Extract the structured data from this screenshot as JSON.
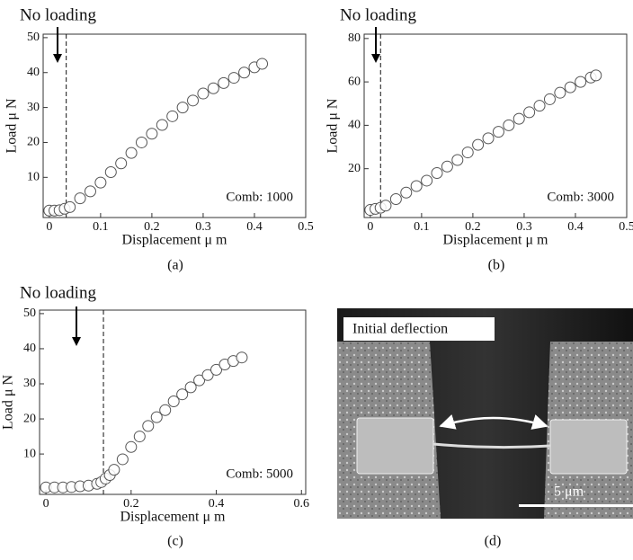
{
  "chart_data": [
    {
      "type": "scatter",
      "annotation": "No loading",
      "note": "Comb: 1000",
      "caption": "(a)",
      "x_label": "Displacement  μ m",
      "y_label": "Load  μ N",
      "xlim": [
        -0.012,
        0.5
      ],
      "ylim": [
        -1.5,
        51
      ],
      "xticks": [
        0,
        0.1,
        0.2,
        0.3,
        0.4,
        0.5
      ],
      "yticks": [
        10,
        20,
        30,
        40,
        50
      ],
      "dashed_x": 0.033,
      "marker_color": "#555555",
      "x": [
        0,
        0.01,
        0.02,
        0.03,
        0.04,
        0.06,
        0.08,
        0.1,
        0.12,
        0.14,
        0.16,
        0.18,
        0.2,
        0.22,
        0.24,
        0.26,
        0.28,
        0.3,
        0.32,
        0.34,
        0.36,
        0.38,
        0.4,
        0.415
      ],
      "values": [
        0.5,
        0.5,
        0.6,
        1,
        1.5,
        4,
        6,
        8.5,
        11.5,
        14,
        17,
        20,
        22.5,
        25,
        27.5,
        30,
        32,
        34,
        35.5,
        37,
        38.5,
        40,
        41.5,
        42.5
      ]
    },
    {
      "type": "scatter",
      "annotation": "No loading",
      "note": "Comb: 3000",
      "caption": "(b)",
      "x_label": "Displacement  μ m",
      "y_label": "Load  μ N",
      "xlim": [
        -0.012,
        0.5
      ],
      "ylim": [
        -2.5,
        82
      ],
      "xticks": [
        0,
        0.1,
        0.2,
        0.3,
        0.4,
        0.5
      ],
      "yticks": [
        20,
        40,
        60,
        80
      ],
      "dashed_x": 0.02,
      "marker_color": "#555555",
      "x": [
        0,
        0.01,
        0.02,
        0.03,
        0.05,
        0.07,
        0.09,
        0.11,
        0.13,
        0.15,
        0.17,
        0.19,
        0.21,
        0.23,
        0.25,
        0.27,
        0.29,
        0.31,
        0.33,
        0.35,
        0.37,
        0.39,
        0.41,
        0.43,
        0.44
      ],
      "values": [
        1,
        1.5,
        2,
        3,
        6,
        9,
        12,
        14.5,
        18,
        21,
        24,
        27.5,
        31,
        34,
        37,
        40,
        43,
        46,
        49,
        52,
        55,
        57.5,
        60,
        62,
        63
      ]
    },
    {
      "type": "scatter",
      "annotation": "No loading",
      "note": "Comb: 5000",
      "caption": "(c)",
      "x_label": "Displacement  μ m",
      "y_label": "Load  μ N",
      "xlim": [
        -0.015,
        0.61
      ],
      "ylim": [
        -1.5,
        51
      ],
      "xticks": [
        0,
        0.2,
        0.4,
        0.6
      ],
      "yticks": [
        10,
        20,
        30,
        40,
        50
      ],
      "dashed_x": 0.135,
      "marker_color": "#555555",
      "x": [
        0,
        0.02,
        0.04,
        0.06,
        0.08,
        0.1,
        0.12,
        0.13,
        0.14,
        0.15,
        0.16,
        0.18,
        0.2,
        0.22,
        0.24,
        0.26,
        0.28,
        0.3,
        0.32,
        0.34,
        0.36,
        0.38,
        0.4,
        0.42,
        0.44,
        0.46
      ],
      "values": [
        0.5,
        0.5,
        0.5,
        0.6,
        0.8,
        1,
        1.5,
        2,
        3,
        4,
        5.5,
        8.5,
        12,
        15,
        18,
        20.5,
        22.5,
        25,
        27,
        29,
        31,
        32.5,
        34,
        35.5,
        36.5,
        37.5
      ]
    }
  ],
  "image": {
    "label": "Initial deflection",
    "scale_bar": "5 μm",
    "caption": "(d)"
  }
}
